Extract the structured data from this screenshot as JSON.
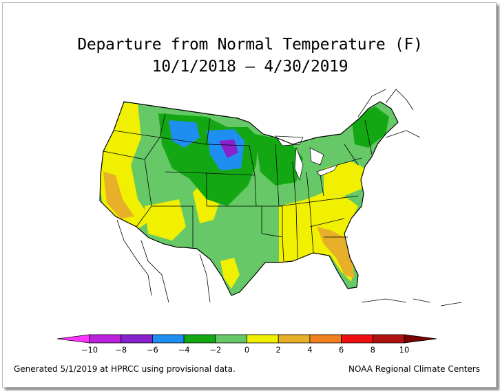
{
  "title": "Departure from Normal Temperature (F)",
  "subtitle": "10/1/2018 – 4/30/2019",
  "legend": {
    "min_marker": "-10",
    "max_marker": "10",
    "bins": [
      {
        "from": -12,
        "to": -10,
        "color": "#ff33ff"
      },
      {
        "from": -10,
        "to": -8,
        "color": "#bb22dd"
      },
      {
        "from": -8,
        "to": -6,
        "color": "#8822cc"
      },
      {
        "from": -6,
        "to": -4,
        "color": "#1e8ef0"
      },
      {
        "from": -4,
        "to": -2,
        "color": "#13a813"
      },
      {
        "from": -2,
        "to": 0,
        "color": "#66c866"
      },
      {
        "from": 0,
        "to": 2,
        "color": "#f0f000"
      },
      {
        "from": 2,
        "to": 4,
        "color": "#e8b028"
      },
      {
        "from": 4,
        "to": 6,
        "color": "#ee8020"
      },
      {
        "from": 6,
        "to": 8,
        "color": "#ee1010"
      },
      {
        "from": 8,
        "to": 10,
        "color": "#b01010"
      },
      {
        "from": 10,
        "to": 12,
        "color": "#780000"
      }
    ],
    "tick_labels": [
      "−10",
      "−8",
      "−6",
      "−4",
      "−2",
      "0",
      "2",
      "4",
      "6",
      "8",
      "10"
    ]
  },
  "map": {
    "region": "Contiguous United States",
    "regional_departures": [
      {
        "region": "Pacific Northwest",
        "value_range": "0 to 2"
      },
      {
        "region": "California",
        "value_range": "2 to 4"
      },
      {
        "region": "Northern Plains",
        "value_range": "-6 to -2"
      },
      {
        "region": "Upper Midwest",
        "value_range": "-4 to -2"
      },
      {
        "region": "Southwest",
        "value_range": "0 to 2"
      },
      {
        "region": "Texas",
        "value_range": "-2 to 0"
      },
      {
        "region": "Southeast",
        "value_range": "0 to 4"
      },
      {
        "region": "Florida",
        "value_range": "2 to 6"
      },
      {
        "region": "Northeast",
        "value_range": "-2 to 2"
      }
    ]
  },
  "footer": {
    "left": "Generated 5/1/2019 at HPRCC using provisional data.",
    "right": "NOAA Regional Climate Centers"
  }
}
